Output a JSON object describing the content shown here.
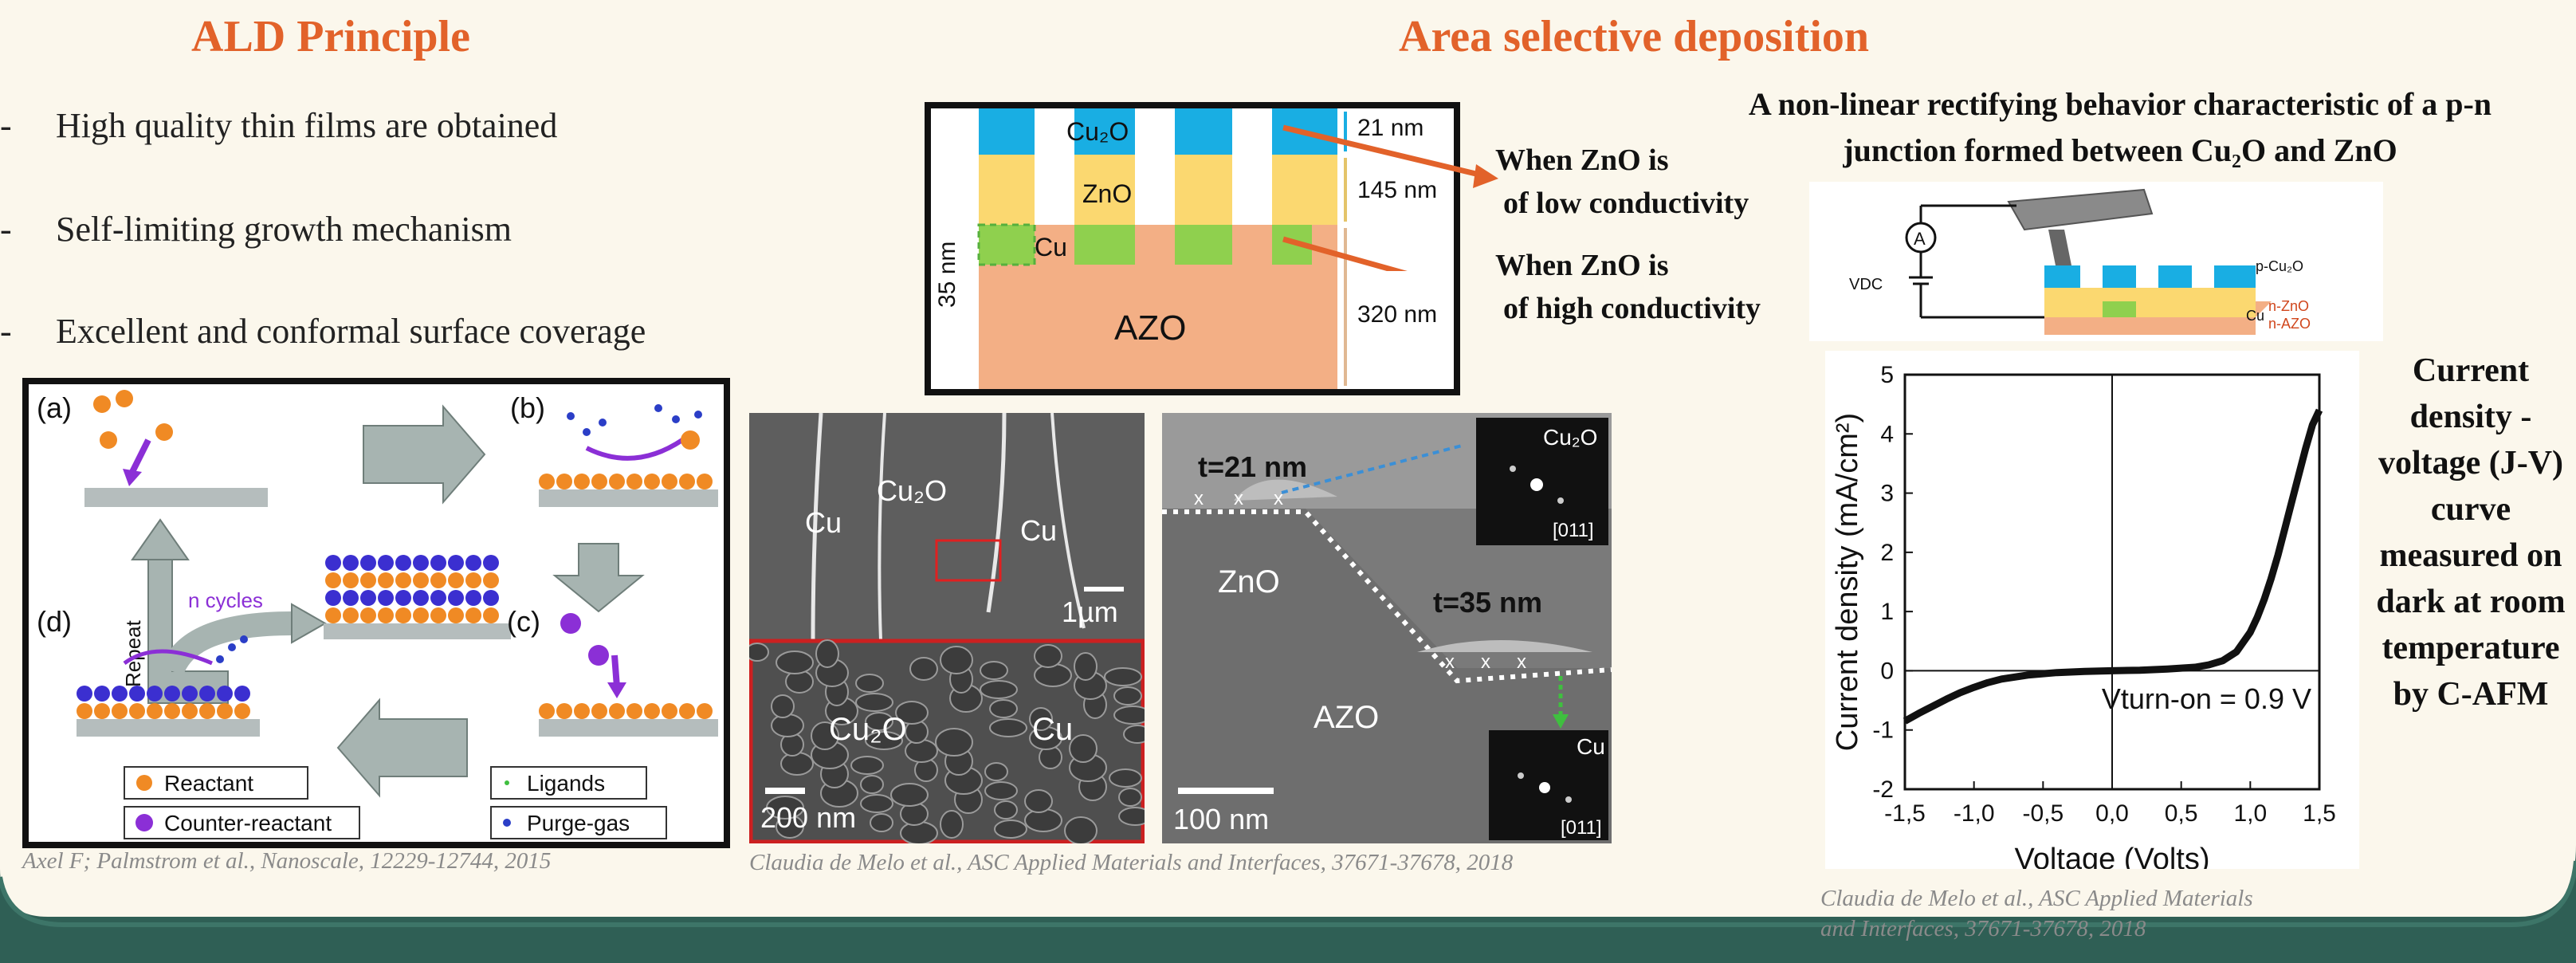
{
  "left": {
    "title": "ALD Principle",
    "bullets": [
      "High quality thin films are obtained",
      "Self-limiting growth mechanism",
      "Excellent and conformal surface coverage"
    ],
    "cycle": {
      "step_a": "(a)",
      "step_b": "(b)",
      "step_c": "(c)",
      "step_d": "(d)",
      "repeat": "Repeat",
      "n_cycles": "n cycles",
      "legend": {
        "reactant": "Reactant",
        "counter_reactant": "Counter-reactant",
        "ligands": "Ligands",
        "purge_gas": "Purge-gas"
      }
    },
    "citation": "Axel F; Palmstrom et al., Nanoscale, 12229-12744, 2015"
  },
  "middle": {
    "title": "Area selective deposition",
    "stack": {
      "cu2o": "Cu₂O",
      "zno": "ZnO",
      "cu": "Cu",
      "azo": "AZO",
      "side_dim": "35 nm",
      "dim_21": "21 nm",
      "dim_145": "145 nm",
      "dim_320": "320 nm"
    },
    "annotation_low": [
      "When ZnO is",
      "of low conductivity"
    ],
    "annotation_high": [
      "When ZnO is",
      "of high conductivity"
    ],
    "sem_left": {
      "cu_left": "Cu",
      "cu2o": "Cu₂O",
      "cu_right": "Cu",
      "scale": "1µm",
      "zoom_cu2o": "Cu₂O",
      "zoom_cu": "Cu",
      "zoom_scale": "200 nm"
    },
    "sem_right": {
      "t21": "t=21 nm",
      "t35": "t=35 nm",
      "zno": "ZnO",
      "azo": "AZO",
      "scale": "100 nm",
      "inset_top_label": "Cu₂O",
      "inset_top_index": "[011]",
      "inset_bottom_label": "Cu",
      "inset_bottom_index": "[011]"
    },
    "citation": "Claudia de Melo et al., ASC Applied Materials and Interfaces, 37671-37678, 2018"
  },
  "right": {
    "heading": [
      "A non-linear rectifying behavior characteristic of a p-n",
      "junction formed between Cu₂O and ZnO"
    ],
    "schematic": {
      "ammeter": "A",
      "vdc": "VDC",
      "p_cu2o": "p-Cu₂O",
      "n_zno": "n-ZnO",
      "cu": "Cu",
      "n_azo": "n-AZO"
    },
    "side_caption": [
      "Current",
      "density -",
      "voltage (J-V)",
      "curve",
      "measured on",
      "dark at room",
      "temperature",
      "by C-AFM"
    ],
    "citation": [
      "Claudia de Melo et al., ASC Applied Materials",
      "and Interfaces, 37671-37678, 2018"
    ]
  },
  "chart_data": {
    "type": "line",
    "xlabel": "Voltage (Volts)",
    "ylabel": "Current density (mA/cm²)",
    "xlim": [
      -1.5,
      1.5
    ],
    "ylim": [
      -2,
      5
    ],
    "xticks": [
      "-1,5",
      "-1,0",
      "-0,5",
      "0,0",
      "0,5",
      "1,0",
      "1,5"
    ],
    "yticks": [
      "-2",
      "-1",
      "0",
      "1",
      "2",
      "3",
      "4",
      "5"
    ],
    "annotation": "Vturn-on = 0.9 V",
    "series": [
      {
        "x": [
          -1.5,
          -1.4,
          -1.3,
          -1.2,
          -1.1,
          -1.0,
          -0.9,
          -0.8,
          -0.6,
          -0.4,
          -0.2,
          0.0,
          0.2,
          0.4,
          0.6,
          0.7,
          0.8,
          0.9,
          1.0,
          1.05,
          1.1,
          1.15,
          1.2,
          1.25,
          1.3,
          1.35,
          1.4,
          1.45,
          1.5
        ],
        "y": [
          -0.85,
          -0.72,
          -0.6,
          -0.48,
          -0.37,
          -0.28,
          -0.2,
          -0.14,
          -0.07,
          -0.03,
          -0.01,
          0.0,
          0.01,
          0.03,
          0.06,
          0.1,
          0.17,
          0.32,
          0.65,
          0.9,
          1.2,
          1.55,
          1.95,
          2.4,
          2.85,
          3.3,
          3.75,
          4.15,
          4.4
        ]
      }
    ]
  }
}
